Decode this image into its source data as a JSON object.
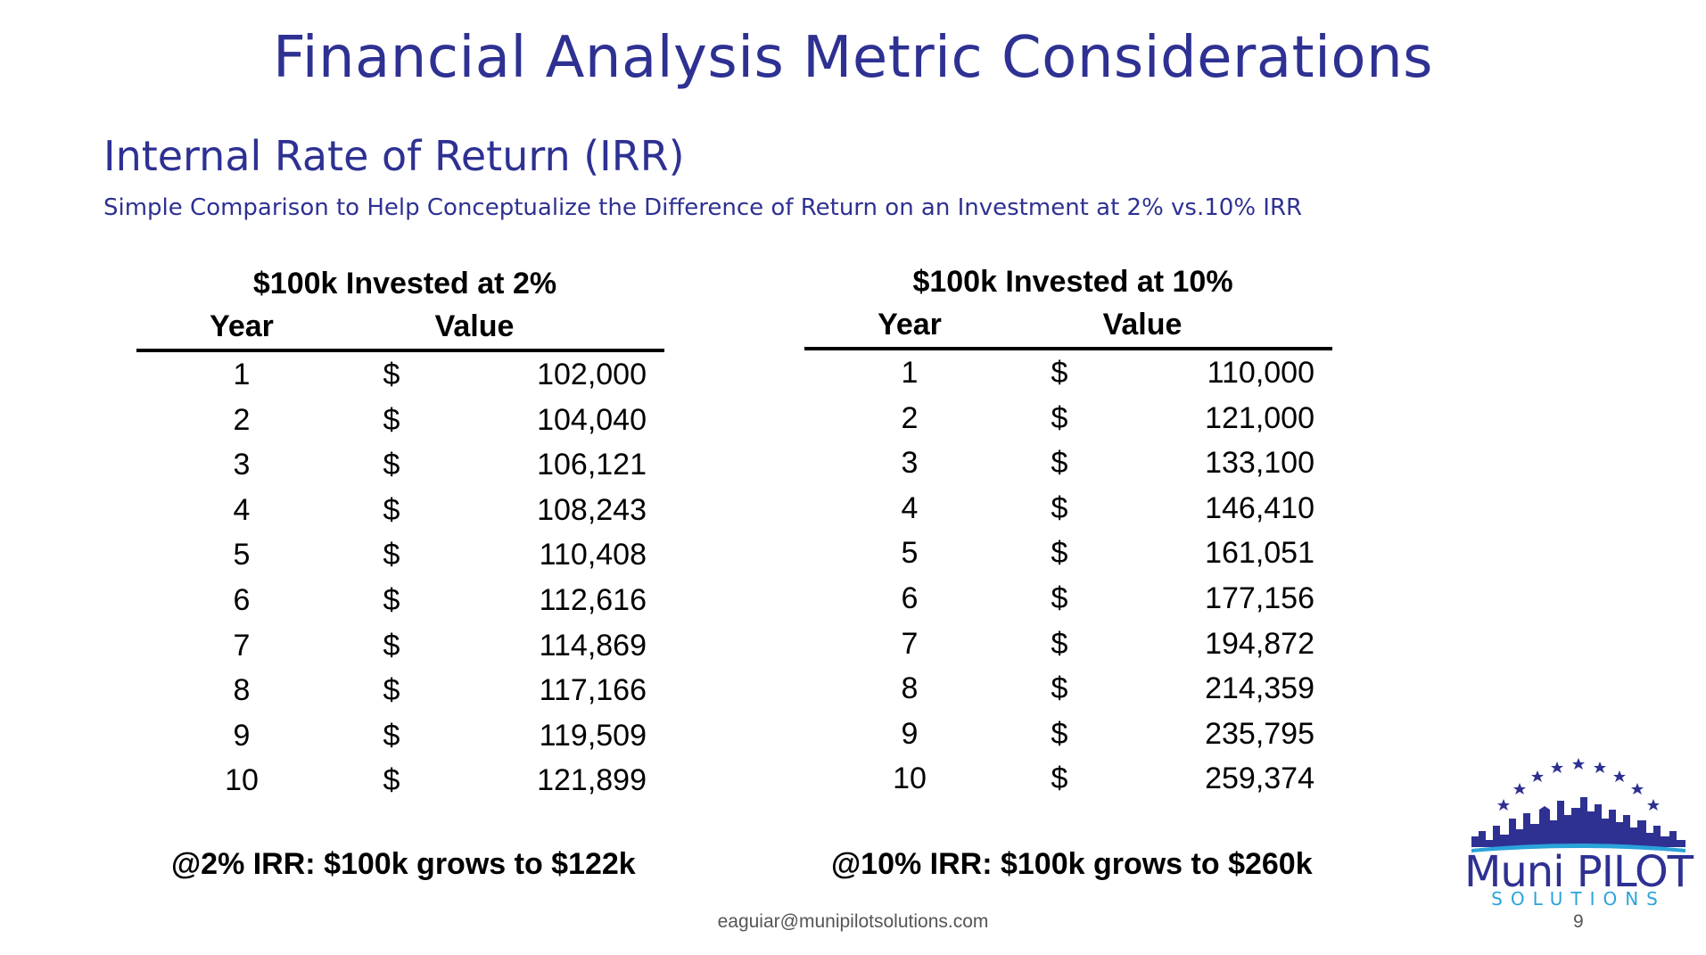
{
  "slide": {
    "title": "Financial Analysis Metric Considerations",
    "subtitle": "Internal Rate of Return (IRR)",
    "tagline": "Simple Comparison to Help Conceptualize the Difference of Return on an Investment at 2% vs.10% IRR"
  },
  "tables": [
    {
      "title": "$100k Invested at 2%",
      "year_header": "Year",
      "value_header": "Value",
      "rows": [
        {
          "year": "1",
          "currency": "$",
          "value": "102,000"
        },
        {
          "year": "2",
          "currency": "$",
          "value": "104,040"
        },
        {
          "year": "3",
          "currency": "$",
          "value": "106,121"
        },
        {
          "year": "4",
          "currency": "$",
          "value": "108,243"
        },
        {
          "year": "5",
          "currency": "$",
          "value": "110,408"
        },
        {
          "year": "6",
          "currency": "$",
          "value": "112,616"
        },
        {
          "year": "7",
          "currency": "$",
          "value": "114,869"
        },
        {
          "year": "8",
          "currency": "$",
          "value": "117,166"
        },
        {
          "year": "9",
          "currency": "$",
          "value": "119,509"
        },
        {
          "year": "10",
          "currency": "$",
          "value": "121,899"
        }
      ],
      "summary": "@2% IRR: $100k grows to $122k"
    },
    {
      "title": "$100k Invested at 10%",
      "year_header": "Year",
      "value_header": "Value",
      "rows": [
        {
          "year": "1",
          "currency": "$",
          "value": "110,000"
        },
        {
          "year": "2",
          "currency": "$",
          "value": "121,000"
        },
        {
          "year": "3",
          "currency": "$",
          "value": "133,100"
        },
        {
          "year": "4",
          "currency": "$",
          "value": "146,410"
        },
        {
          "year": "5",
          "currency": "$",
          "value": "161,051"
        },
        {
          "year": "6",
          "currency": "$",
          "value": "177,156"
        },
        {
          "year": "7",
          "currency": "$",
          "value": "194,872"
        },
        {
          "year": "8",
          "currency": "$",
          "value": "214,359"
        },
        {
          "year": "9",
          "currency": "$",
          "value": "235,795"
        },
        {
          "year": "10",
          "currency": "$",
          "value": "259,374"
        }
      ],
      "summary": "@10% IRR: $100k grows to $260k"
    }
  ],
  "footer": {
    "email": "eaguiar@munipilotsolutions.com",
    "page_number": "9"
  },
  "logo": {
    "name": "Muni PILOT",
    "sub": "SOLUTIONS"
  },
  "colors": {
    "heading": "#2E3192",
    "logo_accent": "#2aa3d9"
  }
}
